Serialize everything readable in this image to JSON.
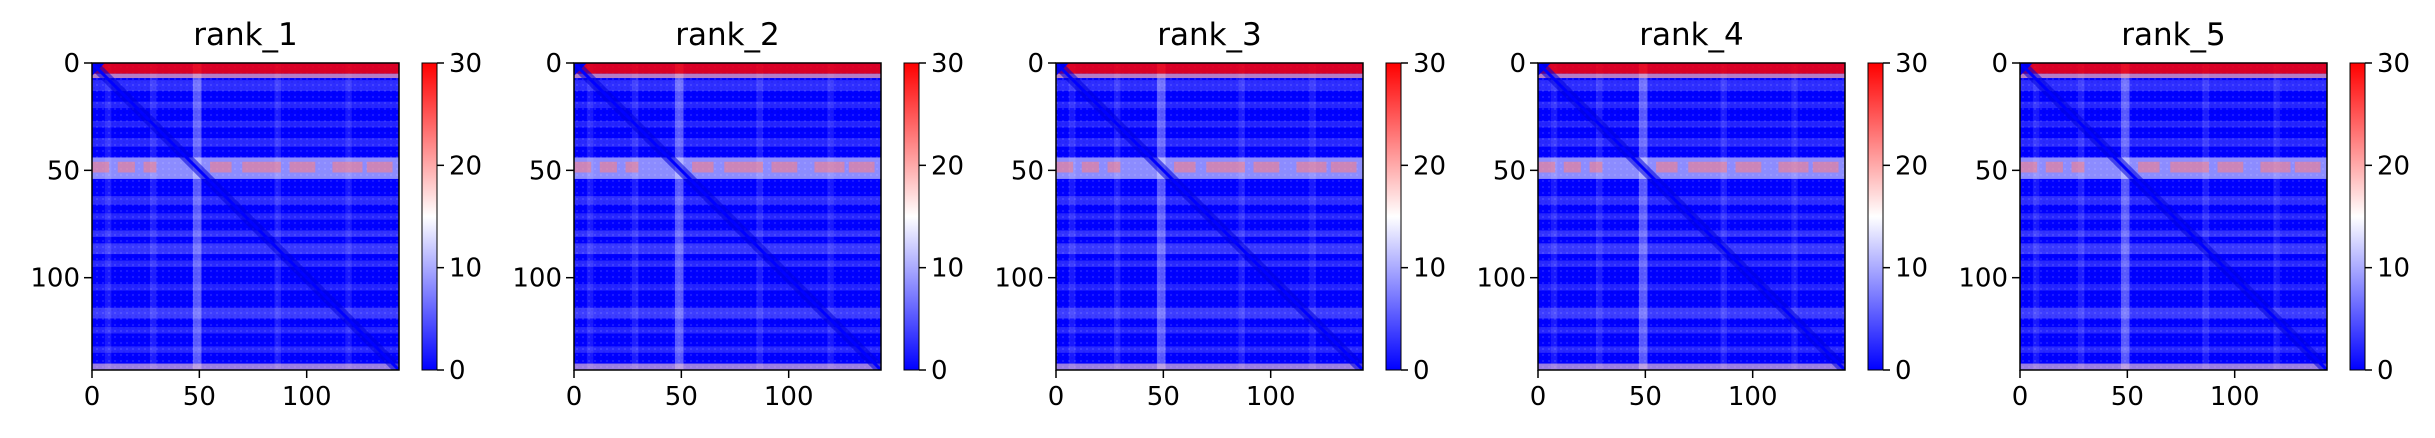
{
  "chart_data": [
    {
      "type": "heatmap",
      "title": "rank_1",
      "xticks": [
        "0",
        "50",
        "100"
      ],
      "yticks": [
        "0",
        "50",
        "100"
      ],
      "xlim": [
        0,
        143
      ],
      "ylim": [
        143,
        0
      ],
      "colorbar": {
        "ticks": [
          "0",
          "10",
          "20",
          "30"
        ],
        "range": [
          0,
          30
        ],
        "colormap": "bwr"
      }
    },
    {
      "type": "heatmap",
      "title": "rank_2",
      "xticks": [
        "0",
        "50",
        "100"
      ],
      "yticks": [
        "0",
        "50",
        "100"
      ],
      "xlim": [
        0,
        143
      ],
      "ylim": [
        143,
        0
      ],
      "colorbar": {
        "ticks": [
          "0",
          "10",
          "20",
          "30"
        ],
        "range": [
          0,
          30
        ],
        "colormap": "bwr"
      }
    },
    {
      "type": "heatmap",
      "title": "rank_3",
      "xticks": [
        "0",
        "50",
        "100"
      ],
      "yticks": [
        "0",
        "50",
        "100"
      ],
      "xlim": [
        0,
        143
      ],
      "ylim": [
        143,
        0
      ],
      "colorbar": {
        "ticks": [
          "0",
          "10",
          "20",
          "30"
        ],
        "range": [
          0,
          30
        ],
        "colormap": "bwr"
      }
    },
    {
      "type": "heatmap",
      "title": "rank_4",
      "xticks": [
        "0",
        "50",
        "100"
      ],
      "yticks": [
        "0",
        "50",
        "100"
      ],
      "xlim": [
        0,
        143
      ],
      "ylim": [
        143,
        0
      ],
      "colorbar": {
        "ticks": [
          "0",
          "10",
          "20",
          "30"
        ],
        "range": [
          0,
          30
        ],
        "colormap": "bwr"
      }
    },
    {
      "type": "heatmap",
      "title": "rank_5",
      "xticks": [
        "0",
        "50",
        "100"
      ],
      "yticks": [
        "0",
        "50",
        "100"
      ],
      "xlim": [
        0,
        143
      ],
      "ylim": [
        143,
        0
      ],
      "colorbar": {
        "ticks": [
          "0",
          "10",
          "20",
          "30"
        ],
        "range": [
          0,
          30
        ],
        "colormap": "bwr"
      }
    }
  ],
  "colors": {
    "low": "#0000ff",
    "mid": "#ffffff",
    "high": "#ff0000"
  }
}
